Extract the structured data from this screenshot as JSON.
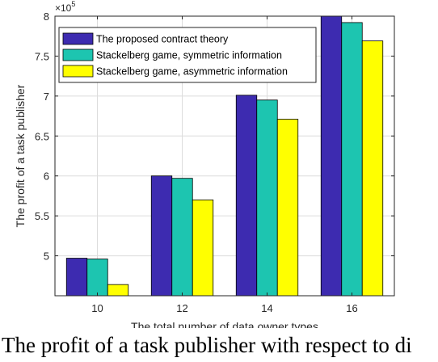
{
  "chart_data": {
    "type": "bar",
    "categories": [
      "10",
      "12",
      "14",
      "16"
    ],
    "series": [
      {
        "name": "The proposed contract theory",
        "color": "#3d2bb0",
        "values": [
          4.97,
          6.0,
          7.01,
          8.0
        ]
      },
      {
        "name": "Stackelberg game, symmetric information",
        "color": "#1dc5b0",
        "values": [
          4.96,
          5.97,
          6.95,
          7.92
        ]
      },
      {
        "name": "Stackelberg game, asymmetric information",
        "color": "#ffff00",
        "values": [
          4.64,
          5.7,
          6.71,
          7.69
        ]
      }
    ],
    "xlabel": "The total number of data owner types",
    "ylabel": "The profit of a task publisher",
    "y_multiplier": "×10",
    "y_exponent": "5",
    "ylim": [
      4.5,
      8.0
    ],
    "yticks": [
      "5",
      "5.5",
      "6",
      "6.5",
      "7",
      "7.5",
      "8"
    ],
    "grid": true,
    "legend_position": "top-left"
  },
  "caption": "The profit of a task publisher with respect to di"
}
